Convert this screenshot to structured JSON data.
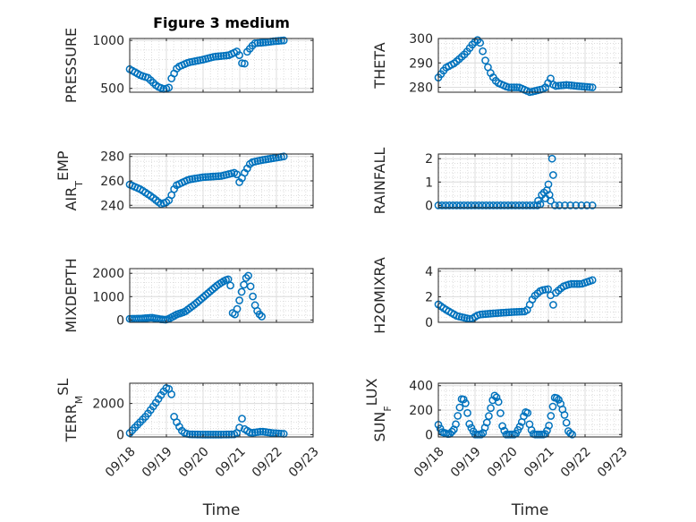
{
  "figure_title": "Figure 3 medium",
  "marker_color": "#0072BD",
  "chart_data": [
    {
      "type": "scatter",
      "title": "Figure 3 medium",
      "ylabel": "PRESSURE",
      "ylim": [
        460,
        1020
      ],
      "yticks": [
        500,
        1000
      ],
      "xlim": [
        0,
        5
      ],
      "xticks": [
        0,
        1,
        2,
        3,
        4,
        5
      ],
      "xticklabels": [],
      "series": [
        {
          "anchors": [
            [
              0,
              700
            ],
            [
              0.3,
              635
            ],
            [
              0.5,
              610
            ],
            [
              0.75,
              520
            ],
            [
              0.95,
              490
            ],
            [
              1.08,
              510
            ],
            [
              1.12,
              590
            ],
            [
              1.3,
              720
            ],
            [
              1.6,
              770
            ],
            [
              2.0,
              800
            ],
            [
              2.3,
              830
            ],
            [
              2.7,
              845
            ],
            [
              2.95,
              890
            ],
            [
              3.05,
              780
            ],
            [
              3.1,
              700
            ],
            [
              3.2,
              880
            ],
            [
              3.4,
              970
            ],
            [
              3.7,
              980
            ],
            [
              3.9,
              990
            ],
            [
              4.2,
              1000
            ]
          ],
          "n": 60
        }
      ]
    },
    {
      "type": "scatter",
      "ylabel": "THETA",
      "ylim": [
        278,
        300
      ],
      "yticks": [
        280,
        290,
        300
      ],
      "xlim": [
        0,
        5
      ],
      "xticks": [
        0,
        1,
        2,
        3,
        4,
        5
      ],
      "xticklabels": [],
      "series": [
        {
          "anchors": [
            [
              0,
              284
            ],
            [
              0.2,
              288
            ],
            [
              0.45,
              290
            ],
            [
              0.75,
              294
            ],
            [
              0.95,
              298
            ],
            [
              1.08,
              299.5
            ],
            [
              1.15,
              298
            ],
            [
              1.3,
              290
            ],
            [
              1.45,
              285
            ],
            [
              1.6,
              282
            ],
            [
              1.9,
              280
            ],
            [
              2.2,
              280
            ],
            [
              2.5,
              278
            ],
            [
              2.9,
              279.5
            ],
            [
              3.0,
              282
            ],
            [
              3.05,
              284
            ],
            [
              3.15,
              280.5
            ],
            [
              3.5,
              281
            ],
            [
              3.8,
              280.5
            ],
            [
              4.2,
              280
            ]
          ],
          "n": 60
        }
      ]
    },
    {
      "type": "scatter",
      "ylabel": "AIR_TEMP",
      "ylim": [
        238,
        282
      ],
      "yticks": [
        240,
        260,
        280
      ],
      "xlim": [
        0,
        5
      ],
      "xticks": [
        0,
        1,
        2,
        3,
        4,
        5
      ],
      "xticklabels": [],
      "series": [
        {
          "anchors": [
            [
              0,
              257
            ],
            [
              0.3,
              253
            ],
            [
              0.6,
              247
            ],
            [
              0.85,
              241
            ],
            [
              1.05,
              243
            ],
            [
              1.15,
              249
            ],
            [
              1.25,
              256
            ],
            [
              1.6,
              261
            ],
            [
              2.0,
              263
            ],
            [
              2.5,
              264
            ],
            [
              2.9,
              267
            ],
            [
              3.0,
              258
            ],
            [
              3.1,
              265
            ],
            [
              3.3,
              275
            ],
            [
              3.6,
              277
            ],
            [
              3.8,
              278
            ],
            [
              4.2,
              280
            ]
          ],
          "n": 60
        }
      ]
    },
    {
      "type": "scatter",
      "ylabel": "RAINFALL",
      "ylim": [
        -0.1,
        2.2
      ],
      "yticks": [
        0,
        1,
        2
      ],
      "xlim": [
        0,
        5
      ],
      "xticks": [
        0,
        1,
        2,
        3,
        4,
        5
      ],
      "xticklabels": [],
      "series": [
        {
          "points": [
            [
              0,
              0
            ],
            [
              0.1,
              0
            ],
            [
              0.2,
              0
            ],
            [
              0.3,
              0
            ],
            [
              0.4,
              0
            ],
            [
              0.5,
              0
            ],
            [
              0.6,
              0
            ],
            [
              0.7,
              0
            ],
            [
              0.8,
              0
            ],
            [
              0.9,
              0
            ],
            [
              1.0,
              0
            ],
            [
              1.1,
              0
            ],
            [
              1.2,
              0
            ],
            [
              1.3,
              0
            ],
            [
              1.4,
              0
            ],
            [
              1.5,
              0
            ],
            [
              1.6,
              0
            ],
            [
              1.7,
              0
            ],
            [
              1.8,
              0
            ],
            [
              1.9,
              0
            ],
            [
              2.0,
              0
            ],
            [
              2.1,
              0
            ],
            [
              2.2,
              0
            ],
            [
              2.3,
              0
            ],
            [
              2.4,
              0
            ],
            [
              2.5,
              0
            ],
            [
              2.6,
              0
            ],
            [
              2.7,
              0
            ],
            [
              2.72,
              0.2
            ],
            [
              2.78,
              0.05
            ],
            [
              2.82,
              0.45
            ],
            [
              2.88,
              0.55
            ],
            [
              2.92,
              0.3
            ],
            [
              2.96,
              0.65
            ],
            [
              3.0,
              0.9
            ],
            [
              3.03,
              0.45
            ],
            [
              3.06,
              0.2
            ],
            [
              3.1,
              2.0
            ],
            [
              3.13,
              1.3
            ],
            [
              3.18,
              0
            ],
            [
              3.3,
              0
            ],
            [
              3.45,
              0
            ],
            [
              3.6,
              0
            ],
            [
              3.75,
              0
            ],
            [
              3.9,
              0
            ],
            [
              4.05,
              0
            ],
            [
              4.2,
              0
            ]
          ]
        }
      ]
    },
    {
      "type": "scatter",
      "ylabel": "MIXDEPTH",
      "ylim": [
        -100,
        2200
      ],
      "yticks": [
        0,
        1000,
        2000
      ],
      "xlim": [
        0,
        5
      ],
      "xticks": [
        0,
        1,
        2,
        3,
        4,
        5
      ],
      "xticklabels": [],
      "series": [
        {
          "anchors": [
            [
              0,
              50
            ],
            [
              0.3,
              60
            ],
            [
              0.6,
              100
            ],
            [
              0.85,
              30
            ],
            [
              1.0,
              10
            ],
            [
              1.1,
              80
            ],
            [
              1.3,
              250
            ],
            [
              1.5,
              350
            ],
            [
              1.8,
              700
            ],
            [
              2.1,
              1100
            ],
            [
              2.4,
              1500
            ],
            [
              2.6,
              1700
            ],
            [
              2.7,
              1750
            ],
            [
              2.75,
              1450
            ],
            [
              2.78,
              600
            ],
            [
              2.82,
              150
            ],
            [
              2.9,
              300
            ],
            [
              3.05,
              1200
            ],
            [
              3.15,
              1700
            ],
            [
              3.22,
              2000
            ],
            [
              3.3,
              1400
            ],
            [
              3.4,
              700
            ],
            [
              3.5,
              300
            ],
            [
              3.6,
              150
            ]
          ],
          "n": 60
        }
      ]
    },
    {
      "type": "scatter",
      "ylabel": "H2OMIXRA",
      "ylim": [
        0,
        4.2
      ],
      "yticks": [
        0,
        2,
        4
      ],
      "xlim": [
        0,
        5
      ],
      "xticks": [
        0,
        1,
        2,
        3,
        4,
        5
      ],
      "xticklabels": [],
      "series": [
        {
          "anchors": [
            [
              0,
              1.4
            ],
            [
              0.2,
              1.0
            ],
            [
              0.5,
              0.5
            ],
            [
              0.8,
              0.3
            ],
            [
              0.9,
              0.25
            ],
            [
              1.1,
              0.6
            ],
            [
              1.5,
              0.7
            ],
            [
              2.0,
              0.8
            ],
            [
              2.4,
              0.85
            ],
            [
              2.6,
              2.0
            ],
            [
              2.8,
              2.5
            ],
            [
              3.0,
              2.6
            ],
            [
              3.1,
              1.8
            ],
            [
              3.12,
              1.2
            ],
            [
              3.2,
              2.3
            ],
            [
              3.4,
              2.8
            ],
            [
              3.6,
              3.0
            ],
            [
              3.9,
              3.0
            ],
            [
              4.2,
              3.3
            ]
          ],
          "n": 60
        }
      ]
    },
    {
      "type": "scatter",
      "ylabel": "TERR_MSL",
      "ylim": [
        -150,
        3300
      ],
      "yticks": [
        0,
        2000
      ],
      "xlim": [
        0,
        5
      ],
      "xticks": [
        0,
        1,
        2,
        3,
        4,
        5
      ],
      "xticklabels": [
        "09/18",
        "09/19",
        "09/20",
        "09/21",
        "09/22",
        "09/23"
      ],
      "xlabel": "Time",
      "series": [
        {
          "anchors": [
            [
              0,
              100
            ],
            [
              0.2,
              600
            ],
            [
              0.45,
              1200
            ],
            [
              0.7,
              2000
            ],
            [
              0.9,
              2700
            ],
            [
              1.0,
              3000
            ],
            [
              1.1,
              2900
            ],
            [
              1.15,
              2500
            ],
            [
              1.2,
              1200
            ],
            [
              1.3,
              700
            ],
            [
              1.45,
              150
            ],
            [
              1.6,
              20
            ],
            [
              2.0,
              0
            ],
            [
              2.5,
              0
            ],
            [
              2.9,
              20
            ],
            [
              3.0,
              500
            ],
            [
              3.05,
              1200
            ],
            [
              3.1,
              400
            ],
            [
              3.3,
              100
            ],
            [
              3.6,
              200
            ],
            [
              3.9,
              100
            ],
            [
              4.2,
              50
            ]
          ],
          "n": 60
        }
      ]
    },
    {
      "type": "scatter",
      "ylabel": "SUN_FLUX",
      "ylim": [
        -20,
        420
      ],
      "yticks": [
        0,
        200,
        400
      ],
      "xlim": [
        0,
        5
      ],
      "xticks": [
        0,
        1,
        2,
        3,
        4,
        5
      ],
      "xticklabels": [
        "09/18",
        "09/19",
        "09/20",
        "09/21",
        "09/22",
        "09/23"
      ],
      "xlabel": "Time",
      "series": [
        {
          "anchors": [
            [
              0,
              80
            ],
            [
              0.1,
              20
            ],
            [
              0.3,
              0
            ],
            [
              0.45,
              50
            ],
            [
              0.55,
              180
            ],
            [
              0.65,
              310
            ],
            [
              0.75,
              250
            ],
            [
              0.85,
              80
            ],
            [
              1.0,
              0
            ],
            [
              1.2,
              0
            ],
            [
              1.35,
              120
            ],
            [
              1.48,
              280
            ],
            [
              1.55,
              330
            ],
            [
              1.65,
              260
            ],
            [
              1.75,
              60
            ],
            [
              1.85,
              0
            ],
            [
              2.1,
              0
            ],
            [
              2.25,
              80
            ],
            [
              2.35,
              170
            ],
            [
              2.42,
              200
            ],
            [
              2.5,
              60
            ],
            [
              2.6,
              0
            ],
            [
              2.9,
              0
            ],
            [
              3.0,
              50
            ],
            [
              3.1,
              200
            ],
            [
              3.18,
              310
            ],
            [
              3.3,
              280
            ],
            [
              3.45,
              150
            ],
            [
              3.55,
              20
            ],
            [
              3.65,
              0
            ]
          ],
          "n": 70
        }
      ]
    }
  ]
}
